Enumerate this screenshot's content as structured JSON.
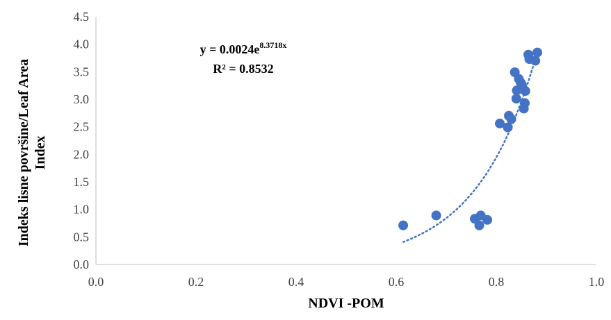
{
  "chart_data": {
    "type": "scatter",
    "title": "",
    "xlabel": "NDVI -POM",
    "ylabel_line1": "Indeks lisne površine/Leaf Area",
    "ylabel_line2": "Index",
    "xlim": [
      0.0,
      1.0
    ],
    "ylim": [
      0.0,
      4.5
    ],
    "x_ticks": [
      "0.0",
      "0.2",
      "0.4",
      "0.6",
      "0.8",
      "1.0"
    ],
    "y_ticks": [
      "0.0",
      "0.5",
      "1.0",
      "1.5",
      "2.0",
      "2.5",
      "3.0",
      "3.5",
      "4.0",
      "4.5"
    ],
    "grid": false,
    "legend": false,
    "point_color": "#4472c4",
    "trendline": {
      "type": "exponential",
      "a": 0.0024,
      "b": 8.3718,
      "x_range": [
        0.614,
        0.882
      ],
      "color": "#4472c4",
      "equation_prefix": "y = 0.0024e",
      "equation_exponent": "8.3718x",
      "r2_label": "R² = 0.8532"
    },
    "points": [
      {
        "x": 0.614,
        "y": 0.71
      },
      {
        "x": 0.68,
        "y": 0.89
      },
      {
        "x": 0.757,
        "y": 0.83
      },
      {
        "x": 0.766,
        "y": 0.71
      },
      {
        "x": 0.769,
        "y": 0.89
      },
      {
        "x": 0.782,
        "y": 0.81
      },
      {
        "x": 0.807,
        "y": 2.56
      },
      {
        "x": 0.823,
        "y": 2.49
      },
      {
        "x": 0.825,
        "y": 2.7
      },
      {
        "x": 0.83,
        "y": 2.64
      },
      {
        "x": 0.837,
        "y": 3.49
      },
      {
        "x": 0.84,
        "y": 3.01
      },
      {
        "x": 0.841,
        "y": 3.16
      },
      {
        "x": 0.845,
        "y": 3.37
      },
      {
        "x": 0.849,
        "y": 3.3
      },
      {
        "x": 0.851,
        "y": 3.26
      },
      {
        "x": 0.852,
        "y": 3.21
      },
      {
        "x": 0.855,
        "y": 2.83
      },
      {
        "x": 0.857,
        "y": 2.93
      },
      {
        "x": 0.858,
        "y": 3.15
      },
      {
        "x": 0.864,
        "y": 3.81
      },
      {
        "x": 0.866,
        "y": 3.73
      },
      {
        "x": 0.878,
        "y": 3.7
      },
      {
        "x": 0.882,
        "y": 3.85
      }
    ]
  }
}
